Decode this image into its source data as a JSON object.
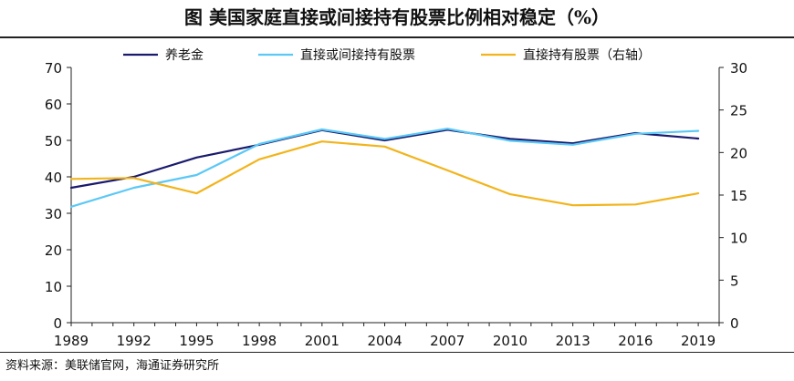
{
  "title": "图 美国家庭直接或间接持有股票比例相对稳定（%）",
  "source": "资料来源：美联储官网，海通证券研究所",
  "chart_data": {
    "type": "line",
    "x": [
      1989,
      1992,
      1995,
      1998,
      2001,
      2004,
      2007,
      2010,
      2013,
      2016,
      2019
    ],
    "xticks": [
      "1989",
      "1992",
      "1995",
      "1998",
      "2001",
      "2004",
      "2007",
      "2010",
      "2013",
      "2016",
      "2019"
    ],
    "ylim": [
      0,
      70
    ],
    "yticks": [
      "0",
      "10",
      "20",
      "30",
      "40",
      "50",
      "60",
      "70"
    ],
    "y2lim": [
      0,
      30
    ],
    "y2ticks": [
      "0",
      "5",
      "10",
      "15",
      "20",
      "25",
      "30"
    ],
    "grid": false,
    "legend_position": "top",
    "series": [
      {
        "name": "养老金",
        "color": "#1a1a6e",
        "axis": "left",
        "values": [
          37.0,
          40.0,
          45.3,
          48.8,
          52.8,
          50.0,
          52.9,
          50.4,
          49.2,
          52.0,
          50.5
        ]
      },
      {
        "name": "直接或间接持有股票",
        "color": "#5bc8f5",
        "axis": "left",
        "values": [
          31.8,
          37.0,
          40.5,
          49.0,
          53.0,
          50.4,
          53.2,
          49.9,
          48.8,
          51.8,
          52.6
        ]
      },
      {
        "name": "直接持有股票（右轴）",
        "color": "#f2b41c",
        "axis": "right",
        "values": [
          16.9,
          17.0,
          15.2,
          19.2,
          21.3,
          20.7,
          17.9,
          15.1,
          13.8,
          13.9,
          15.2
        ]
      }
    ]
  }
}
